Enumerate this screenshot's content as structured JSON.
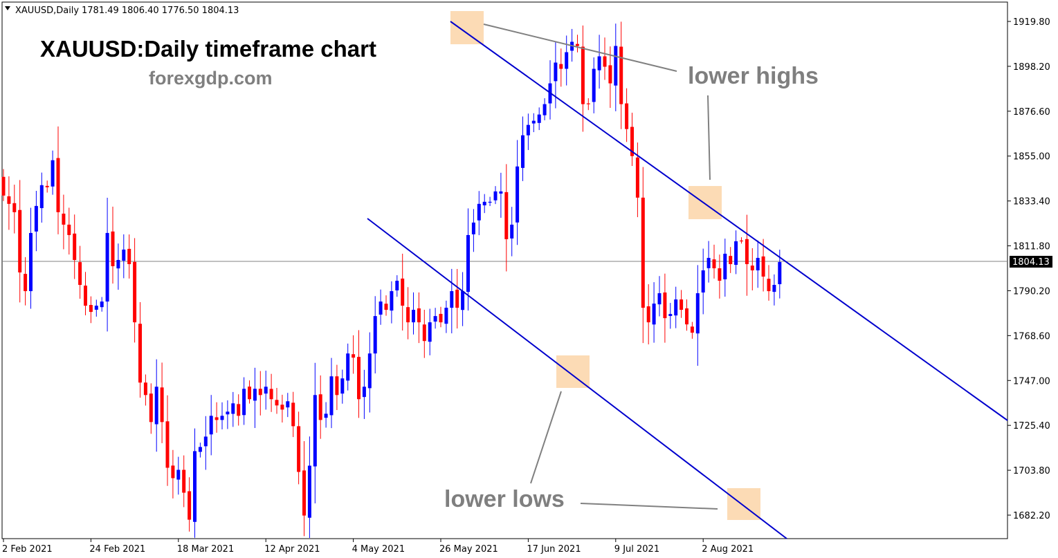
{
  "header": {
    "symbol_label": "XAUUSD,Daily",
    "ohlc": "1781.49 1806.40 1776.50 1804.13",
    "title": "XAUUSD:Daily timeframe chart",
    "subtitle": "forexgdp.com"
  },
  "annotations": {
    "lower_highs": "lower highs",
    "lower_lows": "lower lows"
  },
  "colors": {
    "bull": "#0000ff",
    "bear": "#ff0000",
    "trendline": "#0000cd",
    "highlight": "#fbd5a8",
    "annotation": "#7f7f7f",
    "price_tag_bg": "#000000"
  },
  "chart_data": {
    "type": "candlestick",
    "timeframe": "Daily",
    "current_price": "1804.13",
    "y_ticks": [
      "1919.80",
      "1898.20",
      "1876.60",
      "1855.00",
      "1833.40",
      "1811.80",
      "1790.20",
      "1768.60",
      "1747.00",
      "1725.40",
      "1703.80",
      "1682.20"
    ],
    "x_ticks": [
      "2 Feb 2021",
      "24 Feb 2021",
      "18 Mar 2021",
      "12 Apr 2021",
      "4 May 2021",
      "26 May 2021",
      "17 Jun 2021",
      "9 Jul 2021",
      "2 Aug 2021"
    ],
    "ylim": [
      1669,
      1930
    ],
    "bar_count": 143,
    "closes": [
      1836,
      1832,
      1828,
      1799,
      1790,
      1818,
      1831,
      1841,
      1840,
      1853,
      1828,
      1822,
      1817,
      1805,
      1793,
      1783,
      1780,
      1783,
      1785,
      1818,
      1802,
      1805,
      1810,
      1803,
      1775,
      1746,
      1740,
      1727,
      1744,
      1727,
      1705,
      1700,
      1704,
      1693,
      1680,
      1713,
      1715,
      1720,
      1730,
      1728,
      1730,
      1732,
      1736,
      1730,
      1743,
      1738,
      1743,
      1740,
      1744,
      1738,
      1735,
      1733,
      1737,
      1725,
      1703,
      1682,
      1706,
      1740,
      1728,
      1731,
      1749,
      1740,
      1748,
      1760,
      1758,
      1738,
      1744,
      1760,
      1778,
      1785,
      1781,
      1790,
      1795,
      1783,
      1775,
      1781,
      1775,
      1766,
      1775,
      1778,
      1775,
      1782,
      1790,
      1782,
      1790,
      1817,
      1823,
      1832,
      1833,
      1833,
      1838,
      1838,
      1815,
      1822,
      1850,
      1865,
      1870,
      1872,
      1875,
      1880,
      1890,
      1900,
      1897,
      1905,
      1910,
      1908,
      1880,
      1880,
      1897,
      1903,
      1898,
      1890,
      1908,
      1880,
      1868,
      1855,
      1835,
      1782,
      1775,
      1784,
      1789,
      1777,
      1779,
      1786,
      1781,
      1774,
      1770,
      1789,
      1800,
      1806,
      1801,
      1795,
      1808,
      1803,
      1814,
      1814,
      1803,
      1800,
      1806,
      1797,
      1790,
      1793,
      1804
    ]
  }
}
